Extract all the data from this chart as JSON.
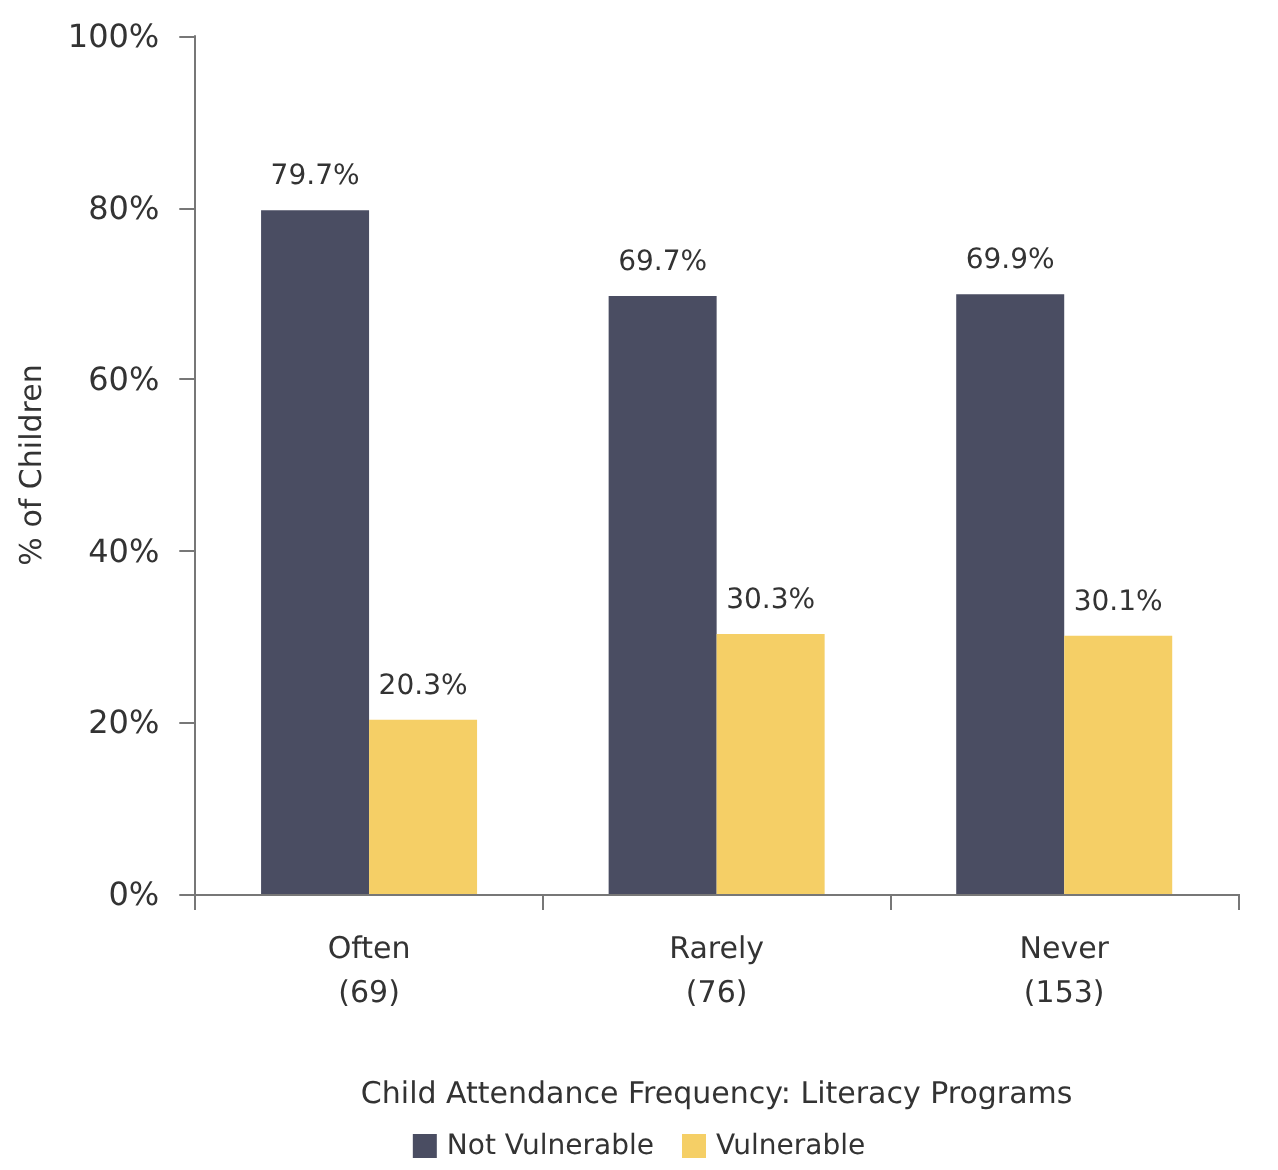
{
  "chart_data": {
    "type": "bar",
    "xlabel": "Child Attendance Frequency: Literacy Programs",
    "ylabel": "% of Children",
    "categories": [
      "Often\n(69)",
      "Rarely\n(76)",
      "Never\n(153)"
    ],
    "series": [
      {
        "name": "Not Vulnerable",
        "color": "#4a4d62",
        "values": [
          79.7,
          69.7,
          69.9
        ]
      },
      {
        "name": "Vulnerable",
        "color": "#f5cf66",
        "values": [
          20.3,
          30.3,
          30.1
        ]
      }
    ],
    "ylim": [
      0,
      100
    ],
    "yticks": [
      {
        "value": 0,
        "label": "0%"
      },
      {
        "value": 20,
        "label": "20%"
      },
      {
        "value": 40,
        "label": "40%"
      },
      {
        "value": 60,
        "label": "60%"
      },
      {
        "value": 80,
        "label": "80%"
      },
      {
        "value": 100,
        "label": "100%"
      }
    ],
    "value_labels": [
      [
        "79.7%",
        "69.7%",
        "69.9%"
      ],
      [
        "20.3%",
        "30.3%",
        "30.1%"
      ]
    ],
    "grid": false,
    "legend": "bottom"
  }
}
